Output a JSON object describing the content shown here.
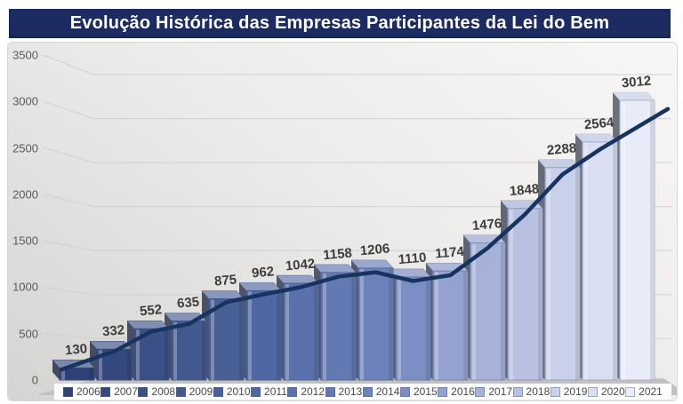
{
  "title": "Evolução Histórica das Empresas Participantes da Lei do Bem",
  "colors": {
    "title_bar_bg": "#1c2b62",
    "title_text": "#ffffff",
    "line": "#17335f",
    "data_label": "#3d3d3d",
    "gridline": "#d2d0ce",
    "floor": "#c2c1c0",
    "bar_side_shadow": "#4a4e59"
  },
  "chart_data": {
    "type": "bar",
    "title": "Evolução Histórica das Empresas Participantes da Lei do Bem",
    "categories": [
      "2006",
      "2007",
      "2008",
      "2009",
      "2010",
      "2011",
      "2012",
      "2013",
      "2014",
      "2015",
      "2016",
      "2017",
      "2018",
      "2019",
      "2020",
      "2021"
    ],
    "values": [
      130,
      332,
      552,
      635,
      875,
      962,
      1042,
      1158,
      1206,
      1110,
      1174,
      1476,
      1848,
      2288,
      2564,
      3012
    ],
    "line_overlay": {
      "note": "navy trend line tracing the same yearly values",
      "values": [
        130,
        332,
        552,
        635,
        875,
        962,
        1042,
        1158,
        1206,
        1110,
        1174,
        1476,
        1848,
        2288,
        2564,
        3012
      ]
    },
    "data_labels": [
      "130",
      "332",
      "552",
      "635",
      "875",
      "962",
      "1042",
      "1158",
      "1206",
      "1110",
      "1174",
      "1476",
      "1848",
      "2288",
      "2564",
      "3012"
    ],
    "xlabel": "",
    "ylabel": "",
    "ylim": [
      0,
      3500
    ],
    "yticks": [
      0,
      500,
      1000,
      1500,
      2000,
      2500,
      3000,
      3500
    ],
    "grid": true,
    "legend_position": "bottom",
    "style": "3d-columns",
    "bar_colors": [
      "#2e4279",
      "#35497f",
      "#3b5086",
      "#42588e",
      "#496097",
      "#4f67a2",
      "#5a71ac",
      "#6379b3",
      "#6d82ba",
      "#7c8fc4",
      "#93a2cf",
      "#a7b2d9",
      "#b8c1e2",
      "#c9d0ea",
      "#d9def1",
      "#e8ecf8"
    ]
  }
}
